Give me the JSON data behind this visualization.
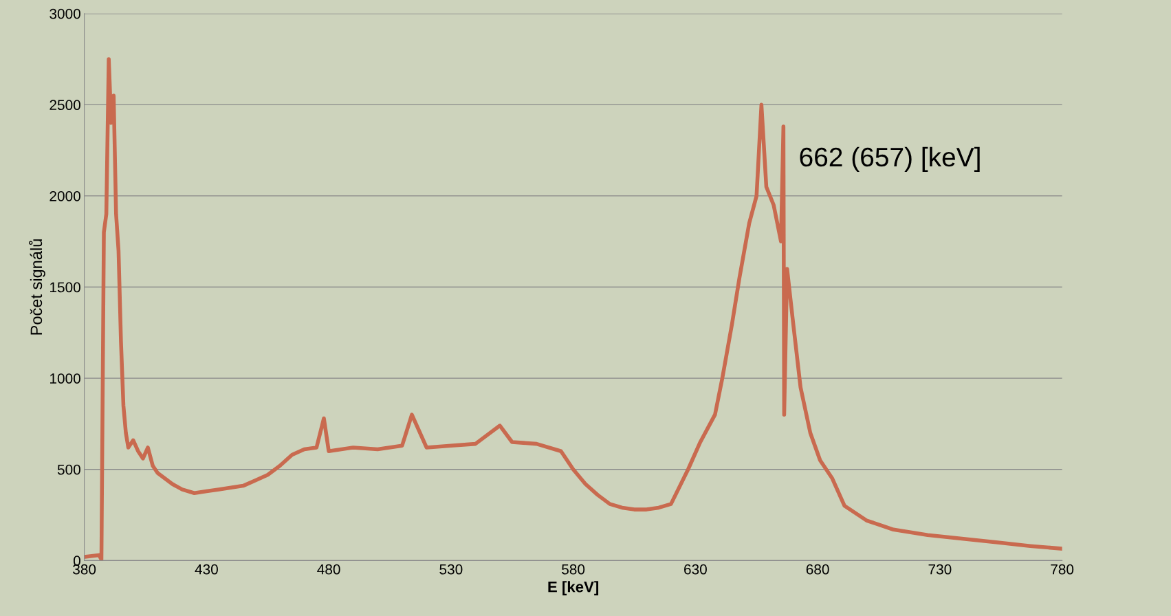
{
  "chart_data": {
    "type": "line",
    "xlabel": "E [keV]",
    "ylabel": "Počet signálů",
    "xlim": [
      380,
      780
    ],
    "xticks": [
      380,
      430,
      480,
      530,
      580,
      630,
      680,
      730,
      780
    ],
    "ylim": [
      0,
      3000
    ],
    "yticks": [
      0,
      500,
      1000,
      1500,
      2000,
      2500,
      3000
    ],
    "grid": "y",
    "marker": "none",
    "line_style": "solid",
    "annotations": [
      {
        "text": "662 (657) [keV]",
        "x": 666,
        "y": 2200
      }
    ],
    "series": [
      {
        "color": "#c96a4f",
        "x": [
          380,
          383,
          386,
          387,
          388,
          389,
          390,
          391,
          392,
          393,
          394,
          395,
          396,
          397,
          398,
          400,
          402,
          404,
          406,
          408,
          410,
          413,
          416,
          420,
          425,
          430,
          435,
          440,
          445,
          450,
          455,
          460,
          465,
          470,
          475,
          478,
          480,
          490,
          500,
          510,
          514,
          520,
          530,
          540,
          550,
          555,
          565,
          575,
          580,
          585,
          590,
          595,
          600,
          605,
          610,
          615,
          620,
          627,
          632,
          638,
          641,
          645,
          648,
          652,
          655,
          657,
          659,
          662,
          665,
          666,
          666.3,
          667.5,
          670,
          673,
          677,
          681,
          686,
          691,
          700,
          711,
          725,
          739,
          753,
          767,
          780
        ],
        "values": [
          20,
          25,
          30,
          5,
          1800,
          1900,
          2750,
          2400,
          2550,
          1900,
          1700,
          1200,
          850,
          700,
          620,
          660,
          600,
          560,
          620,
          520,
          480,
          450,
          420,
          390,
          370,
          380,
          390,
          400,
          410,
          440,
          470,
          520,
          580,
          610,
          620,
          780,
          600,
          620,
          610,
          630,
          800,
          620,
          630,
          640,
          740,
          650,
          640,
          600,
          500,
          420,
          360,
          310,
          290,
          280,
          280,
          290,
          310,
          500,
          650,
          800,
          1000,
          1300,
          1550,
          1850,
          2000,
          2500,
          2050,
          1950,
          1750,
          2380,
          800,
          1600,
          1300,
          950,
          700,
          550,
          450,
          300,
          220,
          170,
          140,
          120,
          100,
          80,
          65
        ]
      }
    ]
  }
}
